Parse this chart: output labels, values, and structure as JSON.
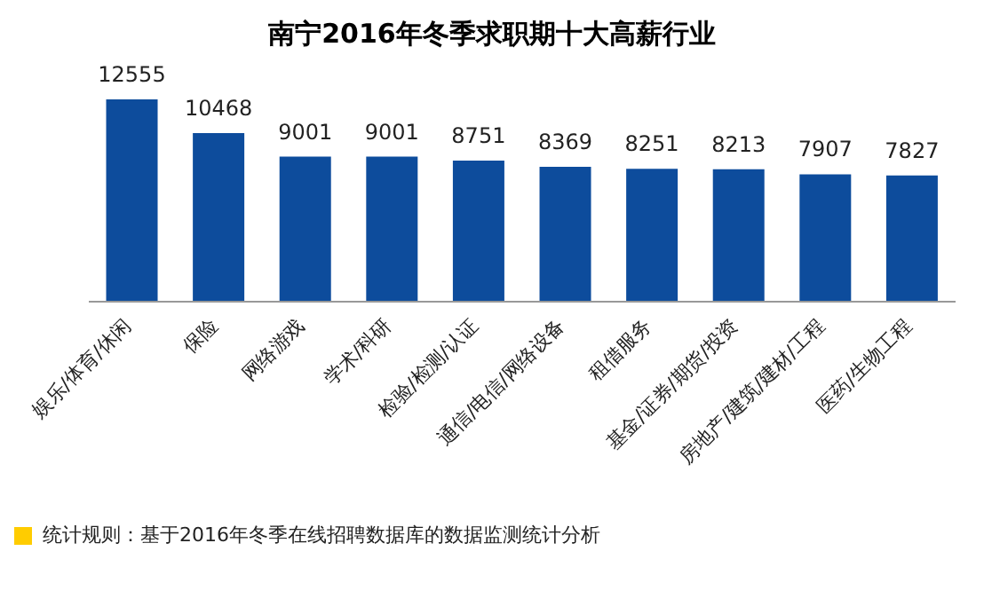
{
  "chart_data": {
    "type": "bar",
    "title": "南宁2016年冬季求职期十大高薪行业",
    "categories": [
      "娱乐/体育/休闲",
      "保险",
      "网络游戏",
      "学术/科研",
      "检验/检测/认证",
      "通信/电信/网络设备",
      "租借服务",
      "基金/证券/期货/投资",
      "房地产/建筑/建材/工程",
      "医药/生物工程"
    ],
    "values": [
      12555,
      10468,
      9001,
      9001,
      8751,
      8369,
      8251,
      8213,
      7907,
      7827
    ],
    "color": "#0d4c9c",
    "data_labels": true,
    "grid": false,
    "legend": false,
    "annotations": [
      "统计规则：基于2016年冬季在线招聘数据库的数据监测统计分析"
    ]
  }
}
